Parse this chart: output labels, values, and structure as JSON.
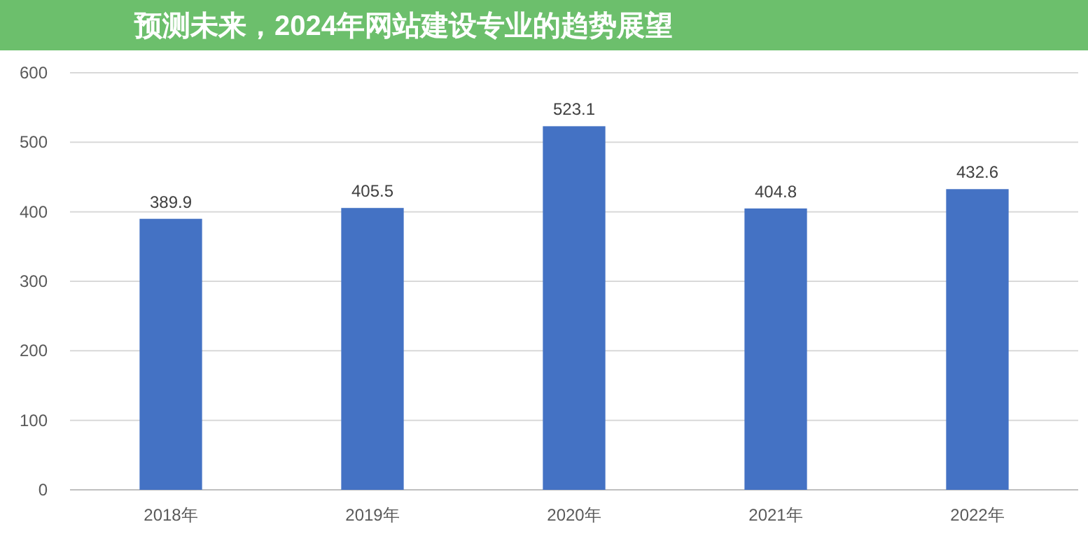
{
  "chart_data": {
    "type": "bar",
    "title": "预测未来，2024年网站建设专业的趋势展望",
    "categories": [
      "2018年",
      "2019年",
      "2020年",
      "2021年",
      "2022年"
    ],
    "values": [
      389.9,
      405.5,
      523.1,
      404.8,
      432.6
    ],
    "color": "#4472c4",
    "ylim": [
      0,
      600
    ],
    "yticks": [
      0,
      100,
      200,
      300,
      400,
      500,
      600
    ],
    "grid": "y",
    "data_labels": true
  }
}
